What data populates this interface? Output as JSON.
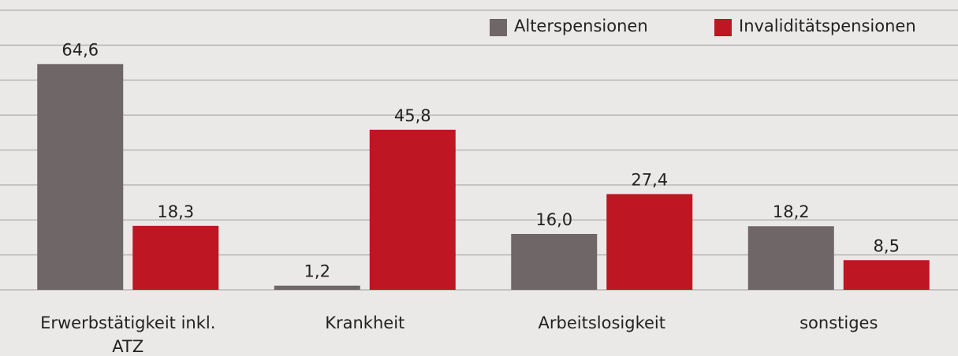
{
  "chart_data": {
    "type": "bar",
    "categories": [
      "Erwerbstätigkeit inkl. ATZ",
      "Krankheit",
      "Arbeitslosigkeit",
      "sonstiges"
    ],
    "series": [
      {
        "name": "Alterspensionen",
        "color": "#6f6767",
        "values": [
          64.6,
          1.2,
          16.0,
          18.2
        ],
        "value_labels": [
          "64,6",
          "1,2",
          "16,0",
          "18,2"
        ]
      },
      {
        "name": "Invaliditätspensionen",
        "color": "#be1622",
        "values": [
          18.3,
          45.8,
          27.4,
          8.5
        ],
        "value_labels": [
          "18,3",
          "45,8",
          "27,4",
          "8,5"
        ]
      }
    ],
    "ylim": [
      0,
      80
    ],
    "yticks": [
      0,
      10,
      20,
      30,
      40,
      50,
      60,
      70,
      80
    ],
    "grid": true,
    "legend": "top-right"
  }
}
